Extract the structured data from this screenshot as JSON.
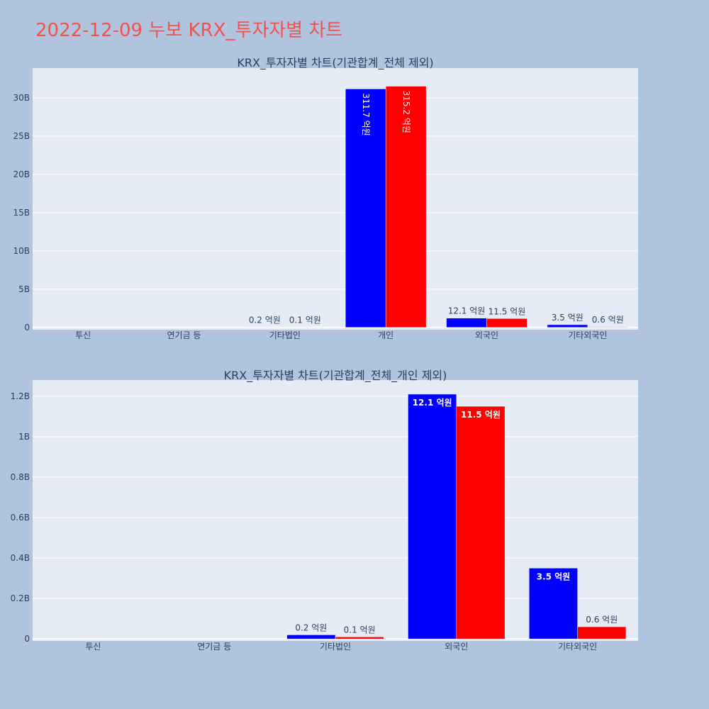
{
  "page_title": "2022-12-09 누보 KRX_투자자별 차트",
  "colors": {
    "buy": "#0000ff",
    "sell": "#ff0000",
    "title": "#ef5350",
    "page_bg": "#b0c4de",
    "plot_bg": "#e5ecf6"
  },
  "chart_data": [
    {
      "type": "bar",
      "title": "KRX_투자자별 차트(기관합계_전체 제외)",
      "categories": [
        "투신",
        "연기금 등",
        "기타법인",
        "개인",
        "외국인",
        "기타외국인"
      ],
      "series": [
        {
          "color": "#0000ff",
          "values": [
            0,
            0,
            20000000,
            31170000000,
            1210000000,
            350000000
          ],
          "labels": [
            "",
            "",
            "0.2 억원",
            "311.7 억원",
            "12.1 억원",
            "3.5 억원"
          ]
        },
        {
          "color": "#ff0000",
          "values": [
            0,
            0,
            10000000,
            31520000000,
            1150000000,
            60000000
          ],
          "labels": [
            "",
            "",
            "0.1 억원",
            "315.2 억원",
            "11.5 억원",
            "0.6 억원"
          ]
        }
      ],
      "yticks": [
        0,
        5000000000,
        10000000000,
        15000000000,
        20000000000,
        25000000000,
        30000000000
      ],
      "ytick_labels": [
        "0",
        "5B",
        "10B",
        "15B",
        "20B",
        "25B",
        "30B"
      ],
      "ylim": [
        -300000000,
        33900000000
      ],
      "grid": true
    },
    {
      "type": "bar",
      "title": "KRX_투자자별 차트(기관합계_전체_개인 제외)",
      "categories": [
        "투신",
        "연기금 등",
        "기타법인",
        "외국인",
        "기타외국인"
      ],
      "series": [
        {
          "color": "#0000ff",
          "values": [
            0,
            0,
            20000000,
            1210000000,
            350000000
          ],
          "labels": [
            "",
            "",
            "0.2 억원",
            "12.1 억원",
            "3.5 억원"
          ]
        },
        {
          "color": "#ff0000",
          "values": [
            0,
            0,
            10000000,
            1150000000,
            60000000
          ],
          "labels": [
            "",
            "",
            "0.1 억원",
            "11.5 억원",
            "0.6 억원"
          ]
        }
      ],
      "yticks": [
        0,
        200000000,
        400000000,
        600000000,
        800000000,
        1000000000,
        1200000000
      ],
      "ytick_labels": [
        "0",
        "0.2B",
        "0.4B",
        "0.6B",
        "0.8B",
        "1B",
        "1.2B"
      ],
      "ylim": [
        -10000000,
        1280000000
      ],
      "grid": true
    }
  ]
}
